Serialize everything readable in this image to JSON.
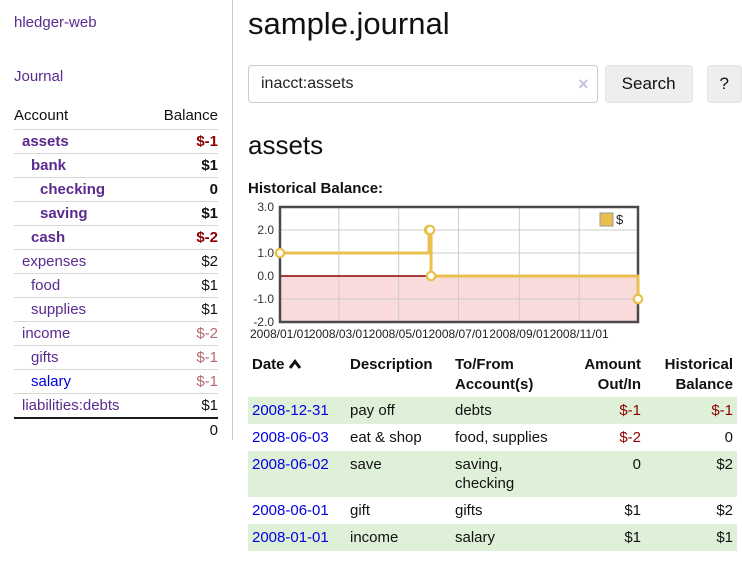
{
  "colors": {
    "link_purple": "#5b2a8e",
    "link_blue": "#0000e0",
    "negative_dark_red": "#8b0000",
    "negative_soft_red": "#b4686c",
    "row_stripe_green": "#dff0d8",
    "chart_line_gold": "#e9c04d",
    "chart_negative_pink": "#fadbdb"
  },
  "sidebar": {
    "brand": "hledger-web",
    "nav_journal": "Journal",
    "accounts": {
      "headers": {
        "account": "Account",
        "balance": "Balance"
      },
      "rows": [
        {
          "account": "assets",
          "balance": "$-1",
          "depth": 1,
          "bold": true,
          "balance_color_role": "dark-red",
          "link_color_role": "purple"
        },
        {
          "account": "bank",
          "balance": "$1",
          "depth": 2,
          "bold": true,
          "balance_color_role": "default",
          "link_color_role": "purple"
        },
        {
          "account": "checking",
          "balance": "0",
          "depth": 3,
          "bold": true,
          "balance_color_role": "default",
          "link_color_role": "purple"
        },
        {
          "account": "saving",
          "balance": "$1",
          "depth": 3,
          "bold": true,
          "balance_color_role": "default",
          "link_color_role": "purple"
        },
        {
          "account": "cash",
          "balance": "$-2",
          "depth": 2,
          "bold": true,
          "balance_color_role": "dark-red",
          "link_color_role": "purple"
        },
        {
          "account": "expenses",
          "balance": "$2",
          "depth": 1,
          "bold": false,
          "balance_color_role": "default",
          "link_color_role": "purple"
        },
        {
          "account": "food",
          "balance": "$1",
          "depth": 2,
          "bold": false,
          "balance_color_role": "default",
          "link_color_role": "purple"
        },
        {
          "account": "supplies",
          "balance": "$1",
          "depth": 2,
          "bold": false,
          "balance_color_role": "default",
          "link_color_role": "purple"
        },
        {
          "account": "income",
          "balance": "$-2",
          "depth": 1,
          "bold": false,
          "balance_color_role": "soft-red",
          "link_color_role": "purple"
        },
        {
          "account": "gifts",
          "balance": "$-1",
          "depth": 2,
          "bold": false,
          "balance_color_role": "soft-red",
          "link_color_role": "purple"
        },
        {
          "account": "salary",
          "balance": "$-1",
          "depth": 2,
          "bold": false,
          "balance_color_role": "soft-red",
          "link_color_role": "blue"
        },
        {
          "account": "liabilities:debts",
          "balance": "$1",
          "depth": 1,
          "bold": false,
          "balance_color_role": "default",
          "link_color_role": "purple"
        }
      ],
      "total": "0"
    }
  },
  "main": {
    "title": "sample.journal",
    "search": {
      "value": "inacct:assets",
      "clear_icon": "×",
      "search_button": "Search",
      "help_button": "?"
    },
    "account_heading": "assets",
    "register": {
      "headers": {
        "date": "Date",
        "description": "Description",
        "accounts": "To/From Account(s)",
        "amount": "Amount Out/In",
        "balance": "Historical Balance"
      },
      "sort": {
        "column": "date",
        "direction": "ascending"
      },
      "rows": [
        {
          "date": "2008-12-31",
          "description": "pay off",
          "accounts": "debts",
          "amount": "$-1",
          "amount_negative": true,
          "balance": "$-1",
          "balance_negative": true
        },
        {
          "date": "2008-06-03",
          "description": "eat & shop",
          "accounts": "food, supplies",
          "amount": "$-2",
          "amount_negative": true,
          "balance": "0",
          "balance_negative": false
        },
        {
          "date": "2008-06-02",
          "description": "save",
          "accounts": "saving, checking",
          "amount": "0",
          "amount_negative": false,
          "balance": "$2",
          "balance_negative": false
        },
        {
          "date": "2008-06-01",
          "description": "gift",
          "accounts": "gifts",
          "amount": "$1",
          "amount_negative": false,
          "balance": "$2",
          "balance_negative": false
        },
        {
          "date": "2008-01-01",
          "description": "income",
          "accounts": "salary",
          "amount": "$1",
          "amount_negative": false,
          "balance": "$1",
          "balance_negative": false
        }
      ]
    }
  },
  "chart_data": {
    "type": "line",
    "step": true,
    "title": "Historical Balance:",
    "legend": [
      {
        "label": "$",
        "color": "#e9c04d"
      }
    ],
    "legend_position": "top-right",
    "x_start": "2008-01-01",
    "x_end": "2008-12-31",
    "points": [
      [
        "2008-01-01",
        1
      ],
      [
        "2008-06-01",
        2
      ],
      [
        "2008-06-02",
        2
      ],
      [
        "2008-06-03",
        0
      ],
      [
        "2008-12-31",
        -1
      ]
    ],
    "x_ticks": [
      "2008/01/01",
      "2008/03/01",
      "2008/05/01",
      "2008/07/01",
      "2008/09/01",
      "2008/11/01"
    ],
    "y_ticks": [
      3.0,
      2.0,
      1.0,
      0.0,
      -1.0,
      -2.0
    ],
    "ylim": [
      -2,
      3
    ],
    "grid": true,
    "line_color": "#e9c04d",
    "zero_line_color": "#8b0000",
    "negative_region_fill": "#fadbdb"
  }
}
